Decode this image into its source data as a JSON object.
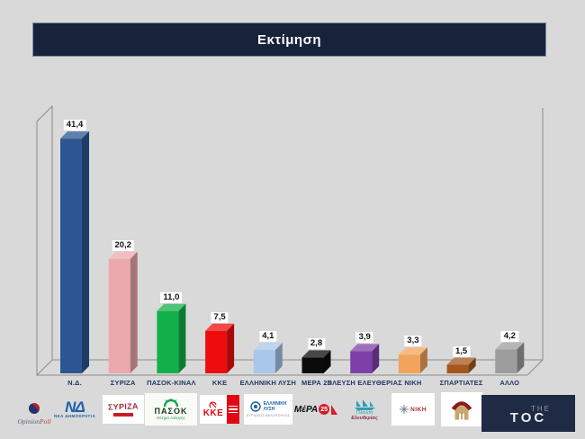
{
  "palette": {
    "background": "#D9D9D9",
    "header_bg": "#16233B",
    "header_text": "#FFFFFF",
    "wall_outline": "#8C8C8C",
    "category_label": "#1F3864",
    "value_label_text": "#111111",
    "value_label_bg": "#FFFFFF"
  },
  "header": {
    "title": "Εκτίμηση"
  },
  "chart_data": {
    "type": "bar",
    "style": "3d-column",
    "title": "Εκτίμηση",
    "categories": [
      "Ν.Δ.",
      "ΣΥΡΙΖΑ",
      "ΠΑΣΟΚ-ΚΙΝΑΛ",
      "ΚΚΕ",
      "ΕΛΛΗΝΙΚΗ ΛΥΣΗ",
      "ΜΕΡΑ 25",
      "ΠΛΕΥΣΗ ΕΛΕΥΘΕΡΙΑΣ",
      "ΝΙΚΗ",
      "ΣΠΑΡΤΙΑΤΕΣ",
      "ΑΛΛΟ"
    ],
    "keys": [
      "nd",
      "syriza",
      "pasok-kinal",
      "kke",
      "elliniki-lysi",
      "mera25",
      "plefsi-eleftherias",
      "niki",
      "spartiates",
      "allo"
    ],
    "values": [
      41.4,
      20.2,
      11.0,
      7.5,
      4.1,
      2.8,
      3.9,
      3.3,
      1.5,
      4.2
    ],
    "value_labels": [
      "41,4",
      "20,2",
      "11,0",
      "7,5",
      "4,1",
      "2,8",
      "3,9",
      "3,3",
      "1,5",
      "4,2"
    ],
    "colors": [
      "#2B5693",
      "#ECA9AD",
      "#12B04A",
      "#EE0D0D",
      "#A9C7E8",
      "#0B0B0B",
      "#7D3FA8",
      "#F2A45C",
      "#A4561D",
      "#9D9D9D"
    ],
    "ylim": [
      0,
      45
    ],
    "grid": false,
    "legend": false,
    "xlabel": "",
    "ylabel": ""
  },
  "logos": {
    "nd": {
      "monogram": "ΝΔ",
      "caption": "ΝΕΑ ΔΗΜΟΚΡΑΤΙΑ"
    },
    "syriza": {
      "wordmark": "ΣΥΡΙΖΑ"
    },
    "pasok": {
      "wordmark": "ΠΑΣΟΚ",
      "caption": "Κίνημα Αλλαγής"
    },
    "kke": {
      "wordmark": "ΚΚΕ"
    },
    "elliniki_lysi": {
      "line1": "ΕΛΛΗΝΙΚΗ",
      "line2": "ΛΥΣΗ",
      "caption": "ΚΥΡΙΑΚΟΣ ΒΕΛΟΠΟΥΛΟΣ"
    },
    "mera25": {
      "wordmark": "ΜέΡΑ",
      "number": "25"
    },
    "plefsi": {
      "line1": "Πλεύση",
      "line2": "Ελευθερίας"
    },
    "niki": {
      "wordmark": "ΝΙΚΗ"
    }
  },
  "footer": {
    "opinionpoll": {
      "part1": "Opinion",
      "part2": "Poll"
    },
    "thetoc": {
      "the": "THE",
      "toc": "TOC"
    }
  }
}
